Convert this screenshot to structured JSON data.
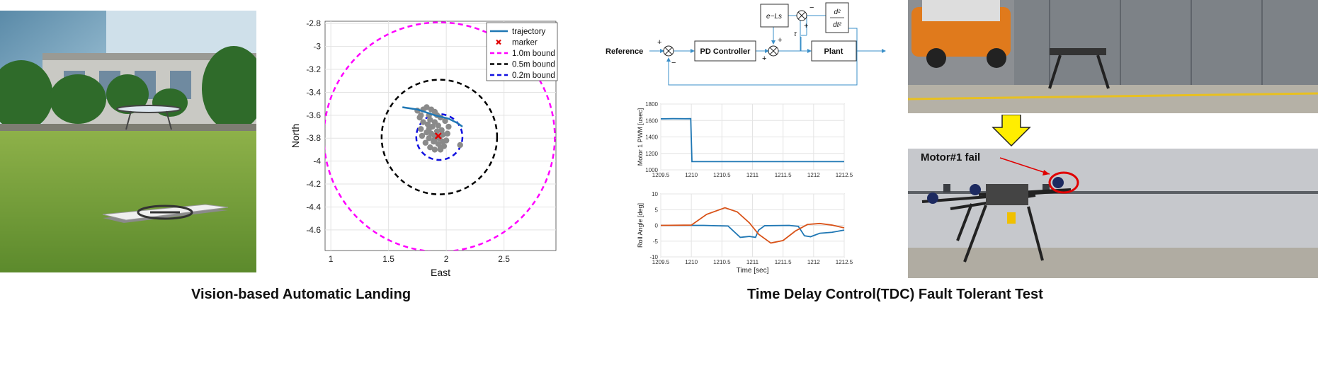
{
  "captions": {
    "left": "Vision-based Automatic Landing",
    "right": "Time Delay Control(TDC) Fault Tolerant Test"
  },
  "photos": {
    "landing_field": "",
    "drone_hangar": "",
    "drone_fault": ""
  },
  "fault_annotation": {
    "label": "Motor#1 fail",
    "arrow_color": "#e00000",
    "down_arrow_color": "#ffee00"
  },
  "block_diagram": {
    "reference": "Reference",
    "controller": "PD Controller",
    "plant": "Plant",
    "delay": "e−Ls",
    "derivative_num": "d²",
    "derivative_den": "dt²",
    "tau": "τ",
    "signs": {
      "sum1_in": "+",
      "sum1_fb": "−",
      "sum2_top": "+",
      "sum2_left": "+",
      "sum3_top": "−",
      "sum3_bottom": "+"
    }
  },
  "chart_data": [
    {
      "type": "scatter",
      "xlabel": "East",
      "ylabel": "North",
      "xlim": [
        0.95,
        2.95
      ],
      "ylim": [
        -4.78,
        -2.78
      ],
      "y_inverted": true,
      "xticks": [
        1,
        1.5,
        2,
        2.5
      ],
      "yticks": [
        -2.8,
        -3,
        -3.2,
        -3.4,
        -3.6,
        -3.8,
        -4,
        -4.2,
        -4.4,
        -4.6
      ],
      "grid": true,
      "legend_position": "top-right",
      "legend": [
        {
          "label": "trajectory",
          "color": "#1f77b4",
          "style": "solid"
        },
        {
          "label": "marker",
          "color": "#e00000",
          "style": "x"
        },
        {
          "label": "1.0m bound",
          "color": "#ff00ff",
          "style": "dashed"
        },
        {
          "label": "0.5m bound",
          "color": "#000000",
          "style": "dashed"
        },
        {
          "label": "0.2m bound",
          "color": "#1010e0",
          "style": "dashed"
        }
      ],
      "center": [
        1.94,
        -3.79
      ],
      "bounds": [
        {
          "radius": 1.0,
          "color": "#ff00ff"
        },
        {
          "radius": 0.5,
          "color": "#000000"
        },
        {
          "radius": 0.2,
          "color": "#1010e0"
        }
      ],
      "trajectory": [
        [
          1.62,
          -3.53
        ],
        [
          1.75,
          -3.55
        ],
        [
          1.9,
          -3.6
        ],
        [
          2.02,
          -3.63
        ],
        [
          2.1,
          -3.67
        ],
        [
          2.14,
          -3.7
        ]
      ],
      "marker": [
        1.93,
        -3.78
      ],
      "scatter_points": [
        [
          1.75,
          -3.56
        ],
        [
          1.78,
          -3.6
        ],
        [
          1.8,
          -3.55
        ],
        [
          1.83,
          -3.53
        ],
        [
          1.87,
          -3.55
        ],
        [
          1.9,
          -3.57
        ],
        [
          1.85,
          -3.6
        ],
        [
          1.8,
          -3.66
        ],
        [
          1.78,
          -3.72
        ],
        [
          1.79,
          -3.78
        ],
        [
          1.82,
          -3.84
        ],
        [
          1.86,
          -3.88
        ],
        [
          1.9,
          -3.9
        ],
        [
          1.95,
          -3.9
        ],
        [
          1.98,
          -3.87
        ],
        [
          2.0,
          -3.82
        ],
        [
          1.97,
          -3.77
        ],
        [
          1.92,
          -3.74
        ],
        [
          1.88,
          -3.7
        ],
        [
          1.86,
          -3.64
        ],
        [
          1.9,
          -3.66
        ],
        [
          1.93,
          -3.69
        ],
        [
          1.96,
          -3.73
        ],
        [
          2.01,
          -3.76
        ],
        [
          2.02,
          -3.7
        ],
        [
          1.99,
          -3.65
        ],
        [
          1.95,
          -3.62
        ],
        [
          1.92,
          -3.6
        ],
        [
          1.84,
          -3.68
        ],
        [
          1.83,
          -3.75
        ],
        [
          1.85,
          -3.8
        ],
        [
          1.89,
          -3.83
        ],
        [
          1.93,
          -3.85
        ],
        [
          1.97,
          -3.83
        ],
        [
          1.94,
          -3.8
        ],
        [
          1.9,
          -3.78
        ],
        [
          1.87,
          -3.76
        ],
        [
          1.85,
          -3.72
        ],
        [
          1.9,
          -3.81
        ],
        [
          1.95,
          -3.88
        ],
        [
          2.12,
          -3.86
        ],
        [
          1.77,
          -3.62
        ]
      ]
    },
    {
      "type": "line",
      "ylabel": "Motor 1 PWM [usec]",
      "xlim": [
        1209.5,
        1212.5
      ],
      "ylim": [
        1000,
        1800
      ],
      "xticks": [
        1209.5,
        1210,
        1210.5,
        1211,
        1211.5,
        1212,
        1212.5
      ],
      "yticks": [
        1000,
        1200,
        1400,
        1600,
        1800
      ],
      "grid": true,
      "series": [
        {
          "color": "#1f77b4",
          "points": [
            [
              1209.5,
              1620
            ],
            [
              1209.7,
              1622
            ],
            [
              1209.9,
              1621
            ],
            [
              1209.99,
              1622
            ],
            [
              1210.01,
              1100
            ],
            [
              1212.5,
              1100
            ]
          ]
        }
      ]
    },
    {
      "type": "line",
      "ylabel": "Roll Angle [deg]",
      "xlabel": "Time [sec]",
      "xlim": [
        1209.5,
        1212.5
      ],
      "ylim": [
        -10,
        10
      ],
      "xticks": [
        1209.5,
        1210,
        1210.5,
        1211,
        1211.5,
        1212,
        1212.5
      ],
      "yticks": [
        -10,
        -5,
        0,
        5,
        10
      ],
      "grid": true,
      "series": [
        {
          "color": "#1f77b4",
          "points": [
            [
              1209.5,
              0
            ],
            [
              1210.2,
              0
            ],
            [
              1210.6,
              -0.2
            ],
            [
              1210.8,
              -3.8
            ],
            [
              1210.95,
              -3.5
            ],
            [
              1211.05,
              -3.8
            ],
            [
              1211.1,
              -1.5
            ],
            [
              1211.2,
              -0.1
            ],
            [
              1211.6,
              0
            ],
            [
              1211.75,
              -0.3
            ],
            [
              1211.85,
              -3.3
            ],
            [
              1211.95,
              -3.6
            ],
            [
              1212.1,
              -2.5
            ],
            [
              1212.3,
              -2.2
            ],
            [
              1212.5,
              -1.5
            ]
          ]
        },
        {
          "color": "#d95319",
          "points": [
            [
              1209.5,
              0
            ],
            [
              1210.0,
              0.1
            ],
            [
              1210.25,
              3.5
            ],
            [
              1210.55,
              5.6
            ],
            [
              1210.75,
              4.3
            ],
            [
              1210.95,
              0.8
            ],
            [
              1211.1,
              -2.8
            ],
            [
              1211.3,
              -5.6
            ],
            [
              1211.5,
              -4.8
            ],
            [
              1211.7,
              -1.8
            ],
            [
              1211.9,
              0.3
            ],
            [
              1212.1,
              0.6
            ],
            [
              1212.3,
              0.1
            ],
            [
              1212.5,
              -0.8
            ]
          ]
        }
      ]
    }
  ]
}
